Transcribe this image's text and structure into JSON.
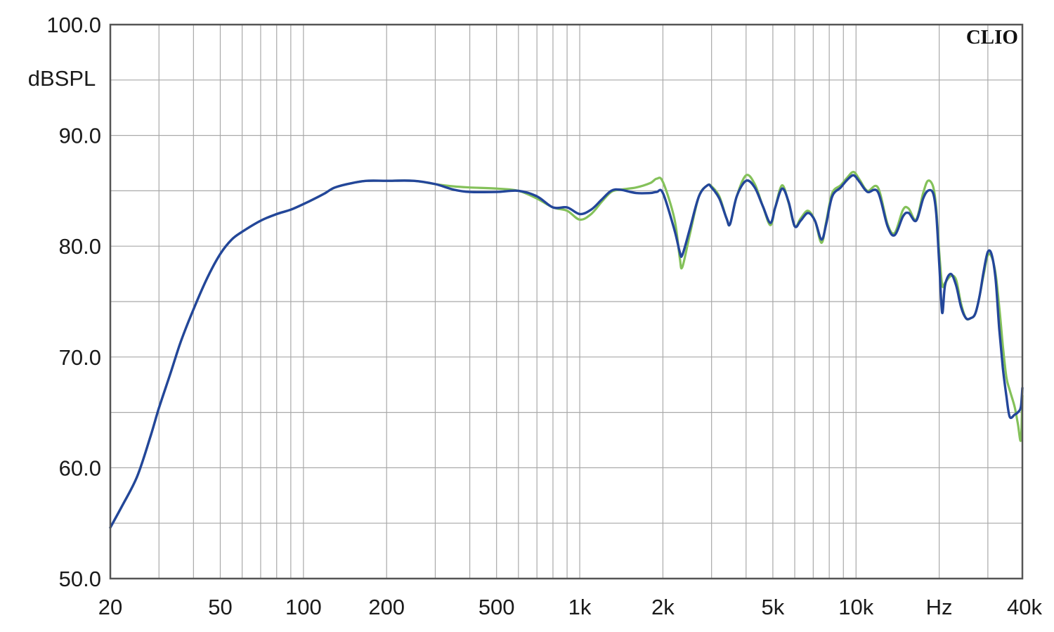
{
  "chart_data": {
    "type": "line",
    "brand": "CLIO",
    "ylabel": "dBSPL",
    "xlabel": "",
    "xscale": "log",
    "xlim": [
      20,
      40000
    ],
    "ylim": [
      50,
      100
    ],
    "grid": true,
    "x_ticks": [
      {
        "value": 20,
        "label": "20"
      },
      {
        "value": 50,
        "label": "50"
      },
      {
        "value": 100,
        "label": "100"
      },
      {
        "value": 200,
        "label": "200"
      },
      {
        "value": 500,
        "label": "500"
      },
      {
        "value": 1000,
        "label": "1k"
      },
      {
        "value": 2000,
        "label": "2k"
      },
      {
        "value": 5000,
        "label": "5k"
      },
      {
        "value": 10000,
        "label": "10k"
      },
      {
        "value": 20000,
        "label": "Hz"
      },
      {
        "value": 40000,
        "label": "40k"
      }
    ],
    "y_ticks": [
      {
        "value": 100,
        "label": "100.0"
      },
      {
        "value": 90,
        "label": "90.0"
      },
      {
        "value": 80,
        "label": "80.0"
      },
      {
        "value": 70,
        "label": "70.0"
      },
      {
        "value": 60,
        "label": "60.0"
      },
      {
        "value": 50,
        "label": "50.0"
      }
    ],
    "series": [
      {
        "color": "#84c15a",
        "points": [
          [
            20,
            54.6
          ],
          [
            22,
            56.5
          ],
          [
            25,
            59.2
          ],
          [
            28,
            62.9
          ],
          [
            30,
            65.4
          ],
          [
            33,
            68.5
          ],
          [
            36,
            71.4
          ],
          [
            40,
            74.3
          ],
          [
            45,
            77.2
          ],
          [
            50,
            79.3
          ],
          [
            55,
            80.6
          ],
          [
            60,
            81.3
          ],
          [
            70,
            82.3
          ],
          [
            80,
            82.9
          ],
          [
            90,
            83.3
          ],
          [
            100,
            83.8
          ],
          [
            110,
            84.3
          ],
          [
            120,
            84.8
          ],
          [
            130,
            85.3
          ],
          [
            150,
            85.7
          ],
          [
            170,
            85.9
          ],
          [
            200,
            85.9
          ],
          [
            250,
            85.9
          ],
          [
            300,
            85.6
          ],
          [
            350,
            85.4
          ],
          [
            400,
            85.3
          ],
          [
            500,
            85.2
          ],
          [
            600,
            85.0
          ],
          [
            700,
            84.3
          ],
          [
            800,
            83.5
          ],
          [
            900,
            83.2
          ],
          [
            1000,
            82.4
          ],
          [
            1100,
            82.9
          ],
          [
            1200,
            84.0
          ],
          [
            1300,
            84.9
          ],
          [
            1400,
            85.1
          ],
          [
            1600,
            85.3
          ],
          [
            1800,
            85.7
          ],
          [
            1900,
            86.1
          ],
          [
            2000,
            85.8
          ],
          [
            2200,
            82.5
          ],
          [
            2300,
            79.0
          ],
          [
            2350,
            78.1
          ],
          [
            2500,
            81.0
          ],
          [
            2700,
            84.5
          ],
          [
            2900,
            85.5
          ],
          [
            3000,
            85.4
          ],
          [
            3200,
            84.5
          ],
          [
            3400,
            82.5
          ],
          [
            3500,
            82.0
          ],
          [
            3700,
            84.5
          ],
          [
            4000,
            86.4
          ],
          [
            4300,
            85.6
          ],
          [
            4600,
            83.6
          ],
          [
            4900,
            81.9
          ],
          [
            5100,
            83.5
          ],
          [
            5400,
            85.5
          ],
          [
            5700,
            83.9
          ],
          [
            6000,
            81.8
          ],
          [
            6300,
            82.5
          ],
          [
            6700,
            83.2
          ],
          [
            7100,
            82.3
          ],
          [
            7500,
            80.3
          ],
          [
            7800,
            82.2
          ],
          [
            8200,
            84.8
          ],
          [
            8800,
            85.5
          ],
          [
            9300,
            86.2
          ],
          [
            9800,
            86.7
          ],
          [
            10300,
            86.0
          ],
          [
            11000,
            85.0
          ],
          [
            12000,
            85.3
          ],
          [
            13000,
            82.0
          ],
          [
            13800,
            81.2
          ],
          [
            14800,
            83.3
          ],
          [
            15500,
            83.4
          ],
          [
            16500,
            82.4
          ],
          [
            17500,
            84.8
          ],
          [
            18200,
            85.9
          ],
          [
            19000,
            85.4
          ],
          [
            19500,
            83.5
          ],
          [
            20000,
            79.5
          ],
          [
            20500,
            76.5
          ],
          [
            21000,
            76.7
          ],
          [
            22000,
            77.3
          ],
          [
            23000,
            77.0
          ],
          [
            24000,
            74.8
          ],
          [
            25000,
            73.5
          ],
          [
            26000,
            73.5
          ],
          [
            27000,
            73.9
          ],
          [
            28000,
            75.5
          ],
          [
            29000,
            77.5
          ],
          [
            30000,
            79.2
          ],
          [
            31000,
            79.0
          ],
          [
            32000,
            77.5
          ],
          [
            33000,
            74.5
          ],
          [
            34000,
            71.0
          ],
          [
            35000,
            68.2
          ],
          [
            36000,
            67.0
          ],
          [
            37500,
            65.5
          ],
          [
            38500,
            64.0
          ],
          [
            39500,
            62.5
          ],
          [
            40000,
            66.5
          ]
        ]
      },
      {
        "color": "#23469a",
        "points": [
          [
            20,
            54.6
          ],
          [
            22,
            56.5
          ],
          [
            25,
            59.2
          ],
          [
            28,
            62.9
          ],
          [
            30,
            65.4
          ],
          [
            33,
            68.5
          ],
          [
            36,
            71.4
          ],
          [
            40,
            74.3
          ],
          [
            45,
            77.2
          ],
          [
            50,
            79.3
          ],
          [
            55,
            80.6
          ],
          [
            60,
            81.3
          ],
          [
            70,
            82.3
          ],
          [
            80,
            82.9
          ],
          [
            90,
            83.3
          ],
          [
            100,
            83.8
          ],
          [
            110,
            84.3
          ],
          [
            120,
            84.8
          ],
          [
            130,
            85.3
          ],
          [
            150,
            85.7
          ],
          [
            170,
            85.9
          ],
          [
            200,
            85.9
          ],
          [
            250,
            85.9
          ],
          [
            300,
            85.6
          ],
          [
            350,
            85.1
          ],
          [
            400,
            84.9
          ],
          [
            500,
            84.9
          ],
          [
            600,
            85.0
          ],
          [
            700,
            84.5
          ],
          [
            800,
            83.5
          ],
          [
            900,
            83.5
          ],
          [
            1000,
            82.9
          ],
          [
            1100,
            83.3
          ],
          [
            1200,
            84.2
          ],
          [
            1300,
            85.0
          ],
          [
            1400,
            85.1
          ],
          [
            1600,
            84.8
          ],
          [
            1800,
            84.8
          ],
          [
            1900,
            84.9
          ],
          [
            2000,
            84.8
          ],
          [
            2200,
            81.5
          ],
          [
            2300,
            79.5
          ],
          [
            2350,
            79.2
          ],
          [
            2500,
            81.5
          ],
          [
            2700,
            84.5
          ],
          [
            2900,
            85.5
          ],
          [
            3000,
            85.3
          ],
          [
            3200,
            84.3
          ],
          [
            3400,
            82.5
          ],
          [
            3500,
            82.0
          ],
          [
            3700,
            84.5
          ],
          [
            4000,
            85.9
          ],
          [
            4300,
            85.3
          ],
          [
            4600,
            83.6
          ],
          [
            4900,
            82.1
          ],
          [
            5100,
            83.5
          ],
          [
            5400,
            85.2
          ],
          [
            5700,
            84.0
          ],
          [
            6000,
            81.8
          ],
          [
            6300,
            82.3
          ],
          [
            6700,
            83.0
          ],
          [
            7100,
            82.3
          ],
          [
            7500,
            80.6
          ],
          [
            7800,
            82.0
          ],
          [
            8200,
            84.5
          ],
          [
            8800,
            85.3
          ],
          [
            9300,
            86.0
          ],
          [
            9800,
            86.4
          ],
          [
            10300,
            85.8
          ],
          [
            11000,
            84.9
          ],
          [
            12000,
            84.9
          ],
          [
            13000,
            81.8
          ],
          [
            13800,
            81.0
          ],
          [
            14800,
            82.7
          ],
          [
            15500,
            83.0
          ],
          [
            16500,
            82.3
          ],
          [
            17500,
            84.3
          ],
          [
            18200,
            85.0
          ],
          [
            19000,
            84.8
          ],
          [
            19500,
            83.0
          ],
          [
            20000,
            78.5
          ],
          [
            20500,
            74.0
          ],
          [
            21000,
            76.5
          ],
          [
            22000,
            77.5
          ],
          [
            23000,
            76.5
          ],
          [
            24000,
            74.5
          ],
          [
            25000,
            73.5
          ],
          [
            26000,
            73.5
          ],
          [
            27000,
            73.9
          ],
          [
            28000,
            75.5
          ],
          [
            29000,
            77.8
          ],
          [
            30000,
            79.5
          ],
          [
            31000,
            79.2
          ],
          [
            32000,
            77.0
          ],
          [
            33000,
            72.5
          ],
          [
            34000,
            69.0
          ],
          [
            35000,
            66.5
          ],
          [
            36000,
            64.6
          ],
          [
            37500,
            64.8
          ],
          [
            38500,
            65.0
          ],
          [
            39500,
            65.5
          ],
          [
            40000,
            67.2
          ]
        ]
      }
    ]
  }
}
